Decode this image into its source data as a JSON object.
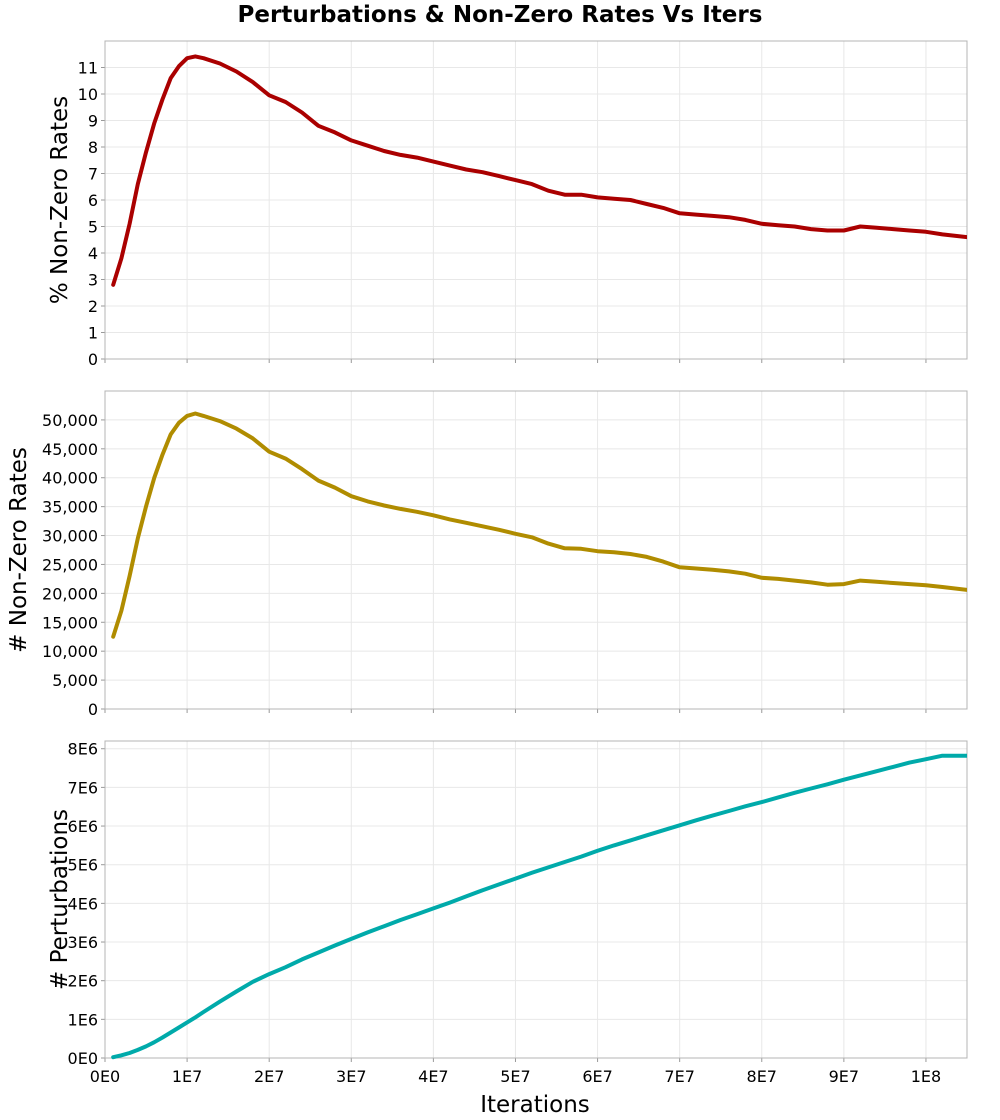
{
  "chart_data": {
    "type": "line",
    "title": "Perturbations & Non-Zero Rates Vs Iters",
    "xlabel": "Iterations",
    "xlim": [
      0,
      105000000
    ],
    "x_tick_values": [
      0,
      10000000,
      20000000,
      30000000,
      40000000,
      50000000,
      60000000,
      70000000,
      80000000,
      90000000,
      100000000
    ],
    "x_tick_labels": [
      "0E0",
      "1E7",
      "2E7",
      "3E7",
      "4E7",
      "5E7",
      "6E7",
      "7E7",
      "8E7",
      "9E7",
      "1E8"
    ],
    "grid": true,
    "x": [
      1000000,
      2000000,
      3000000,
      4000000,
      5000000,
      6000000,
      7000000,
      8000000,
      9000000,
      10000000,
      11000000,
      12000000,
      14000000,
      16000000,
      18000000,
      20000000,
      22000000,
      24000000,
      26000000,
      28000000,
      30000000,
      32000000,
      34000000,
      36000000,
      38000000,
      40000000,
      42000000,
      44000000,
      46000000,
      48000000,
      50000000,
      52000000,
      54000000,
      56000000,
      58000000,
      60000000,
      62000000,
      64000000,
      66000000,
      68000000,
      70000000,
      72000000,
      74000000,
      76000000,
      78000000,
      80000000,
      82000000,
      84000000,
      86000000,
      88000000,
      90000000,
      92000000,
      94000000,
      96000000,
      98000000,
      100000000,
      102000000,
      105000000
    ],
    "panels": [
      {
        "ylabel": "% Non-Zero Rates",
        "color": "#aa0000",
        "ylim": [
          0,
          12
        ],
        "y_tick_values": [
          0,
          1,
          2,
          3,
          4,
          5,
          6,
          7,
          8,
          9,
          10,
          11
        ],
        "y_tick_labels": [
          "0",
          "1",
          "2",
          "3",
          "4",
          "5",
          "6",
          "7",
          "8",
          "9",
          "10",
          "11"
        ],
        "values": [
          2.8,
          3.8,
          5.1,
          6.6,
          7.8,
          8.9,
          9.8,
          10.6,
          11.05,
          11.35,
          11.42,
          11.35,
          11.15,
          10.85,
          10.45,
          9.95,
          9.7,
          9.3,
          8.8,
          8.55,
          8.25,
          8.05,
          7.85,
          7.7,
          7.6,
          7.45,
          7.3,
          7.15,
          7.05,
          6.9,
          6.75,
          6.6,
          6.35,
          6.2,
          6.2,
          6.1,
          6.05,
          6.0,
          5.85,
          5.7,
          5.5,
          5.45,
          5.4,
          5.35,
          5.25,
          5.1,
          5.05,
          5.0,
          4.9,
          4.85,
          4.85,
          5.0,
          4.95,
          4.9,
          4.85,
          4.8,
          4.7,
          4.6
        ]
      },
      {
        "ylabel": "# Non-Zero Rates",
        "color": "#b08c00",
        "ylim": [
          0,
          55000
        ],
        "y_tick_values": [
          0,
          5000,
          10000,
          15000,
          20000,
          25000,
          30000,
          35000,
          40000,
          45000,
          50000
        ],
        "y_tick_labels": [
          "0",
          "5,000",
          "10,000",
          "15,000",
          "20,000",
          "25,000",
          "30,000",
          "35,000",
          "40,000",
          "45,000",
          "50,000"
        ],
        "values": [
          12500,
          17000,
          23000,
          29500,
          35000,
          40000,
          44000,
          47500,
          49500,
          50700,
          51100,
          50700,
          49800,
          48500,
          46800,
          44500,
          43300,
          41500,
          39500,
          38300,
          36800,
          35900,
          35200,
          34600,
          34100,
          33500,
          32800,
          32200,
          31600,
          31000,
          30300,
          29700,
          28600,
          27800,
          27700,
          27300,
          27100,
          26800,
          26300,
          25500,
          24500,
          24300,
          24100,
          23800,
          23400,
          22700,
          22500,
          22200,
          21900,
          21500,
          21600,
          22200,
          22000,
          21800,
          21600,
          21400,
          21100,
          20600
        ]
      },
      {
        "ylabel": "# Perturbations",
        "color": "#00aaaa",
        "ylim": [
          0,
          8200000
        ],
        "y_tick_values": [
          0,
          1000000,
          2000000,
          3000000,
          4000000,
          5000000,
          6000000,
          7000000,
          8000000
        ],
        "y_tick_labels": [
          "0E0",
          "1E6",
          "2E6",
          "3E6",
          "4E6",
          "5E6",
          "6E6",
          "7E6",
          "8E6"
        ],
        "values": [
          20000,
          70000,
          130000,
          210000,
          300000,
          410000,
          530000,
          660000,
          790000,
          920000,
          1050000,
          1190000,
          1460000,
          1720000,
          1970000,
          2170000,
          2350000,
          2550000,
          2730000,
          2910000,
          3080000,
          3250000,
          3410000,
          3570000,
          3720000,
          3870000,
          4020000,
          4180000,
          4340000,
          4490000,
          4640000,
          4790000,
          4930000,
          5070000,
          5210000,
          5360000,
          5500000,
          5630000,
          5760000,
          5890000,
          6020000,
          6150000,
          6270000,
          6390000,
          6510000,
          6620000,
          6740000,
          6860000,
          6970000,
          7080000,
          7200000,
          7310000,
          7420000,
          7530000,
          7640000,
          7730000,
          7820000,
          7820000
        ]
      }
    ]
  }
}
